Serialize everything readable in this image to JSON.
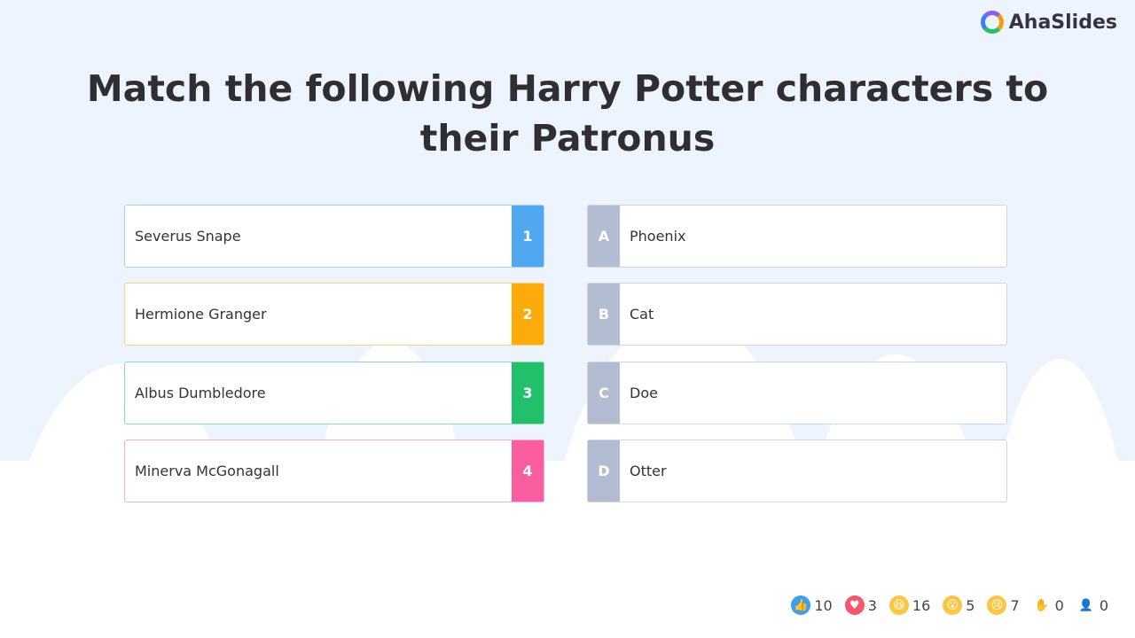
{
  "brand": {
    "name": "AhaSlides"
  },
  "question": {
    "title": "Match the following Harry Potter characters to their Patronus"
  },
  "left_items": [
    {
      "label": "Severus Snape",
      "badge": "1",
      "color": "#4fa8f0"
    },
    {
      "label": "Hermione Granger",
      "badge": "2",
      "color": "#fdab0a"
    },
    {
      "label": "Albus Dumbledore",
      "badge": "3",
      "color": "#22c06b"
    },
    {
      "label": "Minerva McGonagall",
      "badge": "4",
      "color": "#fb5ea0"
    }
  ],
  "right_items": [
    {
      "label": "Phoenix",
      "badge": "A"
    },
    {
      "label": "Cat",
      "badge": "B"
    },
    {
      "label": "Doe",
      "badge": "C"
    },
    {
      "label": "Otter",
      "badge": "D"
    }
  ],
  "reactions": [
    {
      "icon": "thumbs-up-icon",
      "count": "10"
    },
    {
      "icon": "heart-icon",
      "count": "3"
    },
    {
      "icon": "laughing-face-icon",
      "count": "16"
    },
    {
      "icon": "surprised-face-icon",
      "count": "5"
    },
    {
      "icon": "sad-face-icon",
      "count": "7"
    },
    {
      "icon": "raised-hand-icon",
      "count": "0"
    },
    {
      "icon": "participant-icon",
      "count": "0"
    }
  ]
}
